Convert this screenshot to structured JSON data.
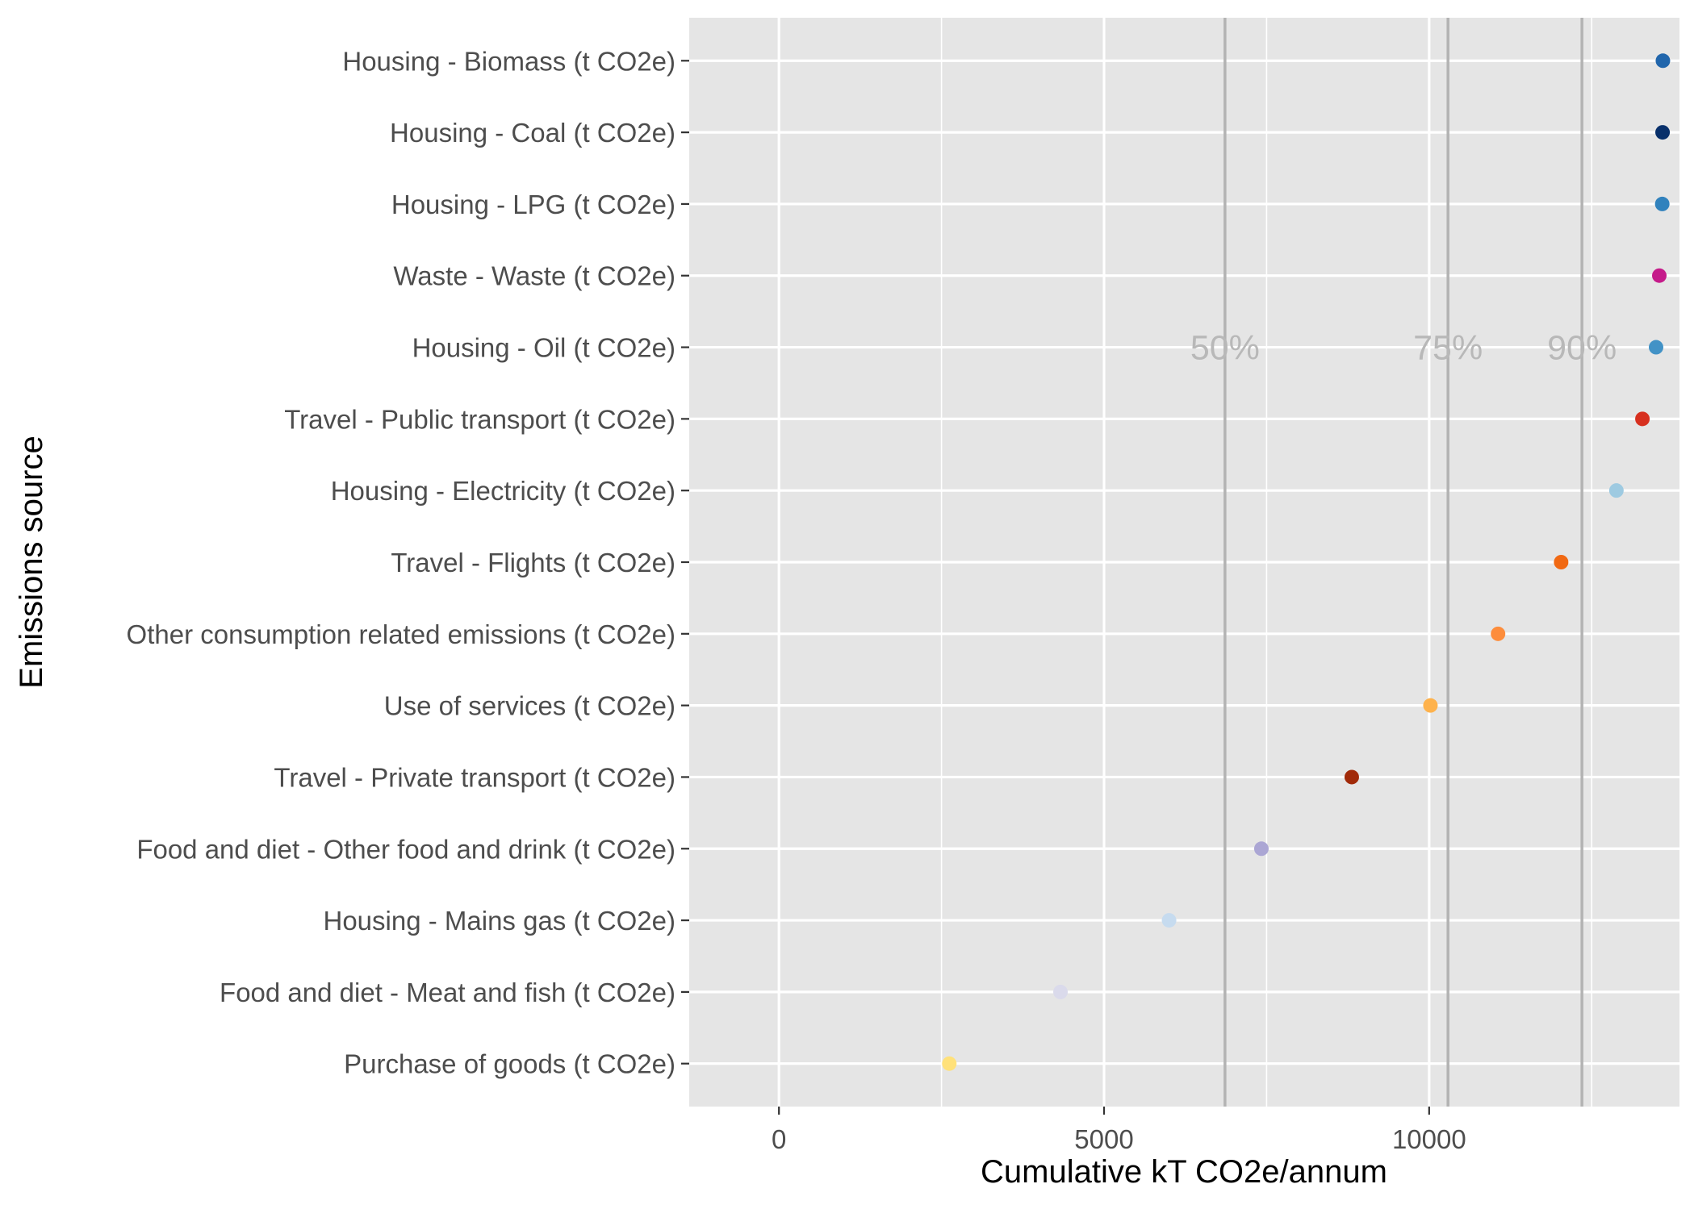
{
  "chart_data": {
    "type": "scatter",
    "xlabel": "Cumulative kT CO2e/annum",
    "ylabel": "Emissions source",
    "xlim": [
      -1380,
      13850
    ],
    "xticks": [
      0,
      5000,
      10000
    ],
    "grid": true,
    "legend": "none",
    "categories": [
      "Housing - Biomass (t CO2e)",
      "Housing - Coal (t CO2e)",
      "Housing - LPG (t CO2e)",
      "Waste - Waste (t CO2e)",
      "Housing - Oil (t CO2e)",
      "Travel - Public transport (t CO2e)",
      "Housing - Electricity (t CO2e)",
      "Travel - Flights (t CO2e)",
      "Other consumption related emissions (t CO2e)",
      "Use of services (t CO2e)",
      "Travel - Private transport (t CO2e)",
      "Food and diet - Other food and drink (t CO2e)",
      "Housing - Mains gas (t CO2e)",
      "Food and diet - Meat and fish (t CO2e)",
      "Purchase of goods (t CO2e)"
    ],
    "values": [
      13595,
      13590,
      13585,
      13540,
      13490,
      13280,
      12880,
      12030,
      11060,
      10020,
      8810,
      7420,
      6000,
      4330,
      2620
    ],
    "colors": [
      "#2166ac",
      "#08306b",
      "#3182bd",
      "#c51b8a",
      "#4292c6",
      "#d7301f",
      "#9ecae1",
      "#f16913",
      "#fd8d3c",
      "#feb24c",
      "#a12a09",
      "#aba6d4",
      "#c6dbef",
      "#dadaeb",
      "#ffe17a"
    ],
    "reference_lines": [
      {
        "label": "50%",
        "value": 6860
      },
      {
        "label": "75%",
        "value": 10290
      },
      {
        "label": "90%",
        "value": 12350
      }
    ]
  },
  "colors": {
    "panel_background": "#e5e5e5",
    "grid": "#ffffff",
    "reference_line": "#b3b3b3"
  }
}
